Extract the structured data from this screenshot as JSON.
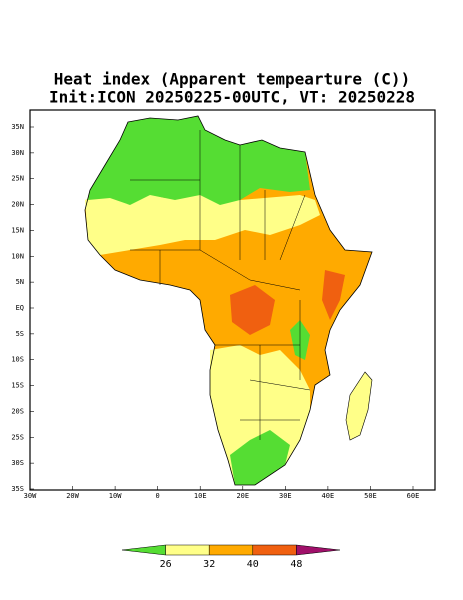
{
  "title": "Heat index (Apparent tempearture (C))",
  "subtitle": "Init:ICON 20250225-00UTC, VT: 20250228",
  "lat_labels": [
    "35N",
    "30N",
    "25N",
    "20N",
    "15N",
    "10N",
    "5N",
    "EQ",
    "5S",
    "10S",
    "15S",
    "20S",
    "25S",
    "30S",
    "35S"
  ],
  "lon_labels": [
    "30W",
    "20W",
    "10W",
    "0",
    "10E",
    "20E",
    "30E",
    "40E",
    "50E",
    "60E"
  ],
  "colorbar": {
    "ticks": [
      26,
      32,
      40,
      48
    ],
    "colors": [
      "#55dd33",
      "#ffff88",
      "#ffaa00",
      "#f06010",
      "#a0106a"
    ]
  }
}
